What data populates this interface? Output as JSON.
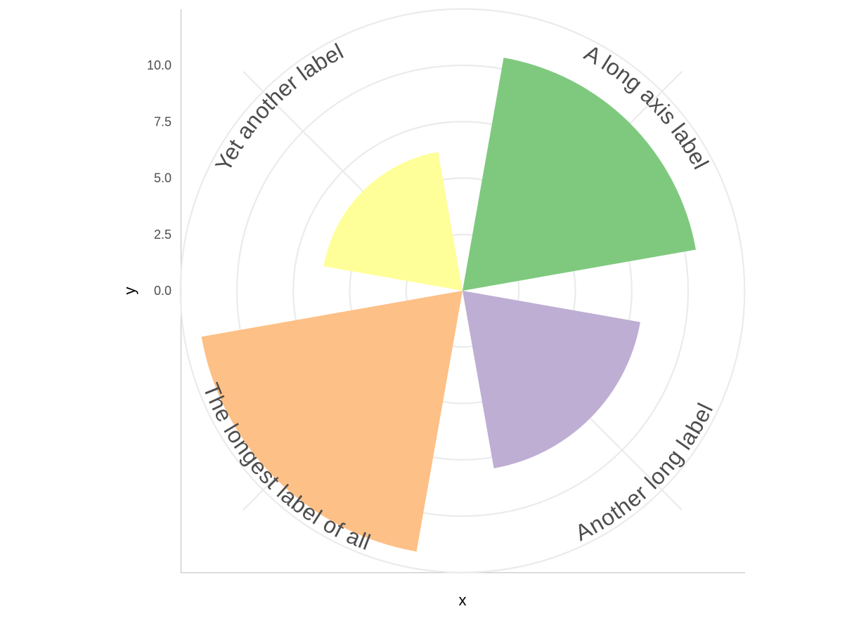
{
  "chart_data": {
    "type": "radial_bar",
    "title": "",
    "xlabel": "x",
    "ylabel": "y",
    "ylim": [
      -2.5,
      11.25
    ],
    "yticks": [
      0.0,
      2.5,
      5.0,
      7.5,
      10.0
    ],
    "ytick_labels": [
      "0.0",
      "2.5",
      "5.0",
      "7.5",
      "10.0"
    ],
    "grid": true,
    "legend": "none",
    "categories": [
      "A long axis label",
      "Another long label",
      "The longest label of all",
      "Yet another label"
    ],
    "values": [
      8,
      5.5,
      9.25,
      3.75
    ],
    "colors": [
      "#7fc97f",
      "#beaed4",
      "#fdc086",
      "#ffff99"
    ]
  }
}
